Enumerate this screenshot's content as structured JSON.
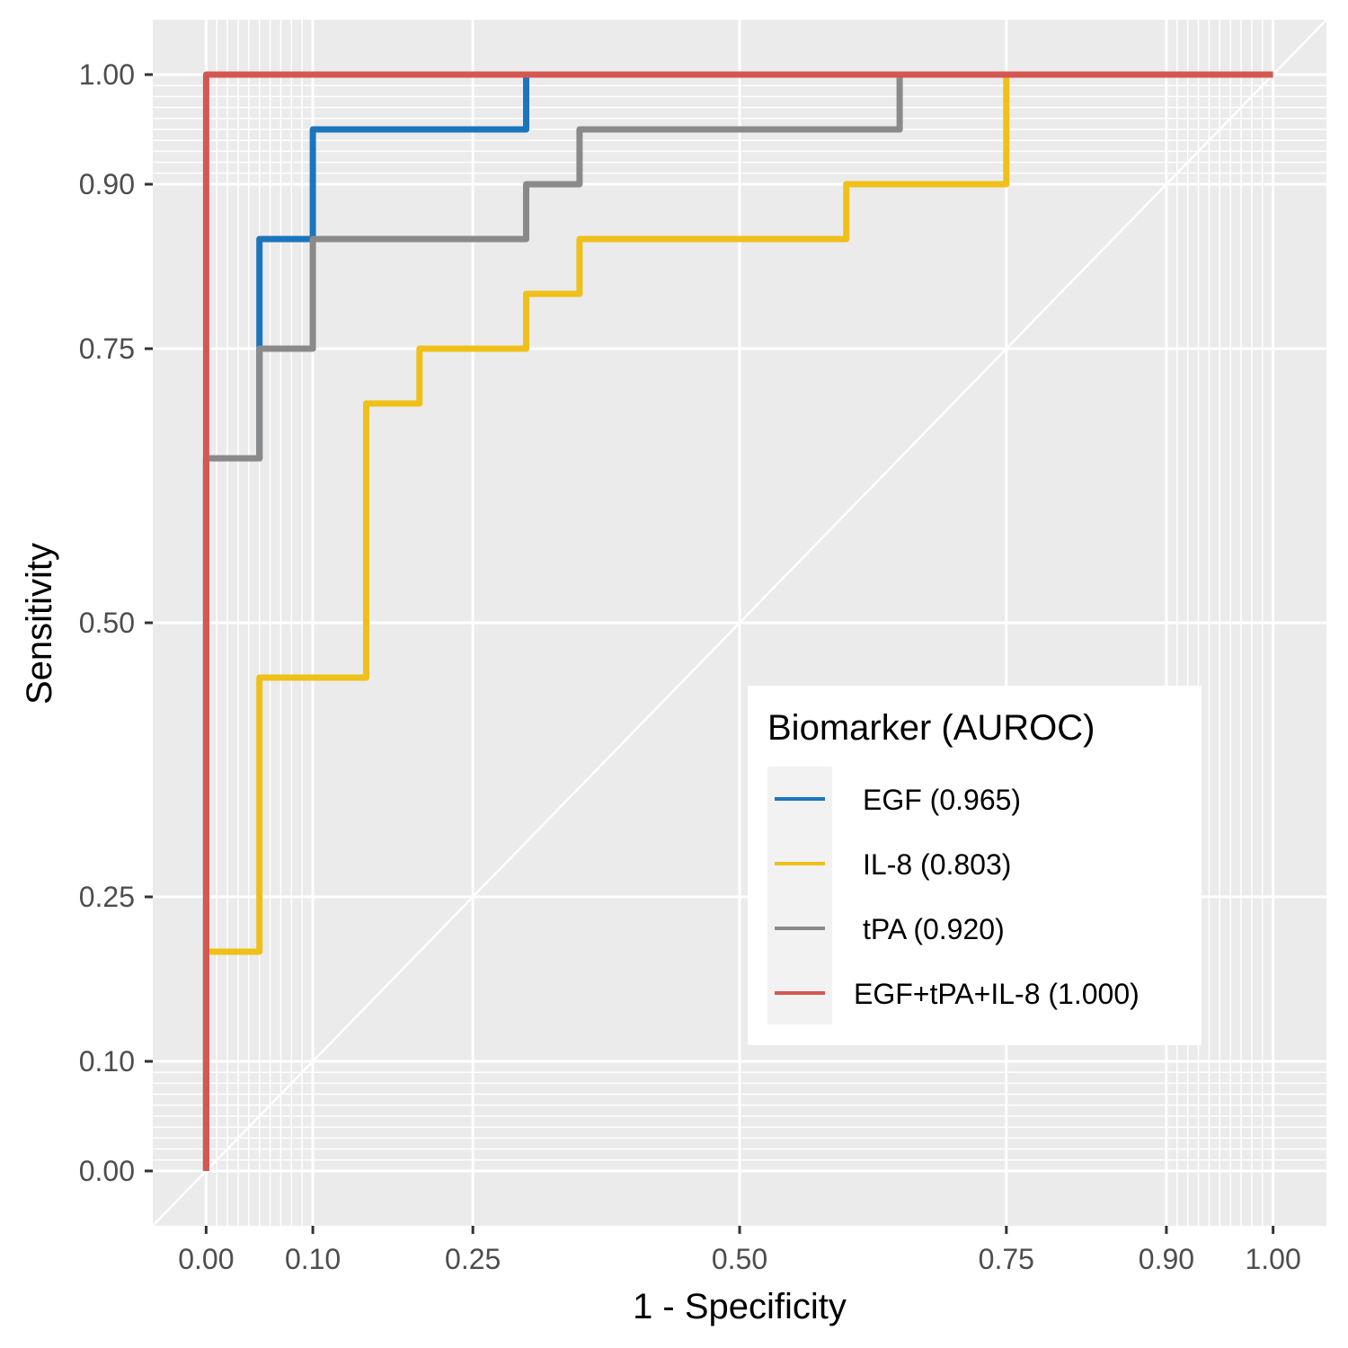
{
  "chart_data": {
    "type": "line",
    "subtype": "roc-step",
    "title": "",
    "xlabel": "1 - Specificity",
    "ylabel": "Sensitivity",
    "xlim": [
      -0.05,
      1.05
    ],
    "ylim": [
      -0.05,
      1.05
    ],
    "x_ticks": [
      0.0,
      0.1,
      0.25,
      0.5,
      0.75,
      0.9,
      1.0
    ],
    "x_tick_labels": [
      "0.00",
      "0.10",
      "0.25",
      "0.50",
      "0.75",
      "0.90",
      "1.00"
    ],
    "y_ticks": [
      0.0,
      0.1,
      0.25,
      0.5,
      0.75,
      0.9,
      1.0
    ],
    "y_tick_labels": [
      "0.00",
      "0.10",
      "0.25",
      "0.50",
      "0.75",
      "0.90",
      "1.00"
    ],
    "grid": true,
    "background": "#EBEBEB",
    "reference_line": {
      "x": [
        -0.05,
        1.05
      ],
      "y": [
        -0.05,
        1.05
      ],
      "color": "#FFFFFF"
    },
    "legend": {
      "title": "Biomarker (AUROC)",
      "position": "bottom-right-inside"
    },
    "series": [
      {
        "name": "EGF (0.965)",
        "label": "EGF (0.965)",
        "auroc": 0.965,
        "color": "#1B75BC",
        "x": [
          0.0,
          0.0,
          0.05,
          0.05,
          0.05,
          0.1,
          0.1,
          0.3,
          0.3
        ],
        "y": [
          0.0,
          0.65,
          0.65,
          0.75,
          0.85,
          0.85,
          0.95,
          0.95,
          1.0
        ]
      },
      {
        "name": "IL-8 (0.803)",
        "label": "IL-8 (0.803)",
        "auroc": 0.803,
        "color": "#EFC01A",
        "x": [
          0.0,
          0.0,
          0.05,
          0.05,
          0.15,
          0.15,
          0.2,
          0.2,
          0.3,
          0.3,
          0.35,
          0.35,
          0.6,
          0.6,
          0.75,
          0.75,
          1.0
        ],
        "y": [
          0.0,
          0.2,
          0.2,
          0.45,
          0.45,
          0.7,
          0.7,
          0.75,
          0.75,
          0.8,
          0.8,
          0.85,
          0.85,
          0.9,
          0.9,
          1.0,
          1.0
        ]
      },
      {
        "name": "tPA (0.920)",
        "label": "tPA (0.920)",
        "auroc": 0.92,
        "color": "#8A8A8A",
        "x": [
          0.0,
          0.0,
          0.05,
          0.05,
          0.1,
          0.1,
          0.3,
          0.3,
          0.35,
          0.35,
          0.65,
          0.65
        ],
        "y": [
          0.0,
          0.65,
          0.65,
          0.75,
          0.75,
          0.85,
          0.85,
          0.9,
          0.9,
          0.95,
          0.95,
          1.0
        ]
      },
      {
        "name": "EGF+tPA+IL-8 (1.000)",
        "label": "EGF+tPA+IL-8 (1.000)",
        "auroc": 1.0,
        "color": "#D55752",
        "x": [
          0.0,
          0.0,
          1.0
        ],
        "y": [
          0.0,
          1.0,
          1.0
        ]
      }
    ]
  }
}
